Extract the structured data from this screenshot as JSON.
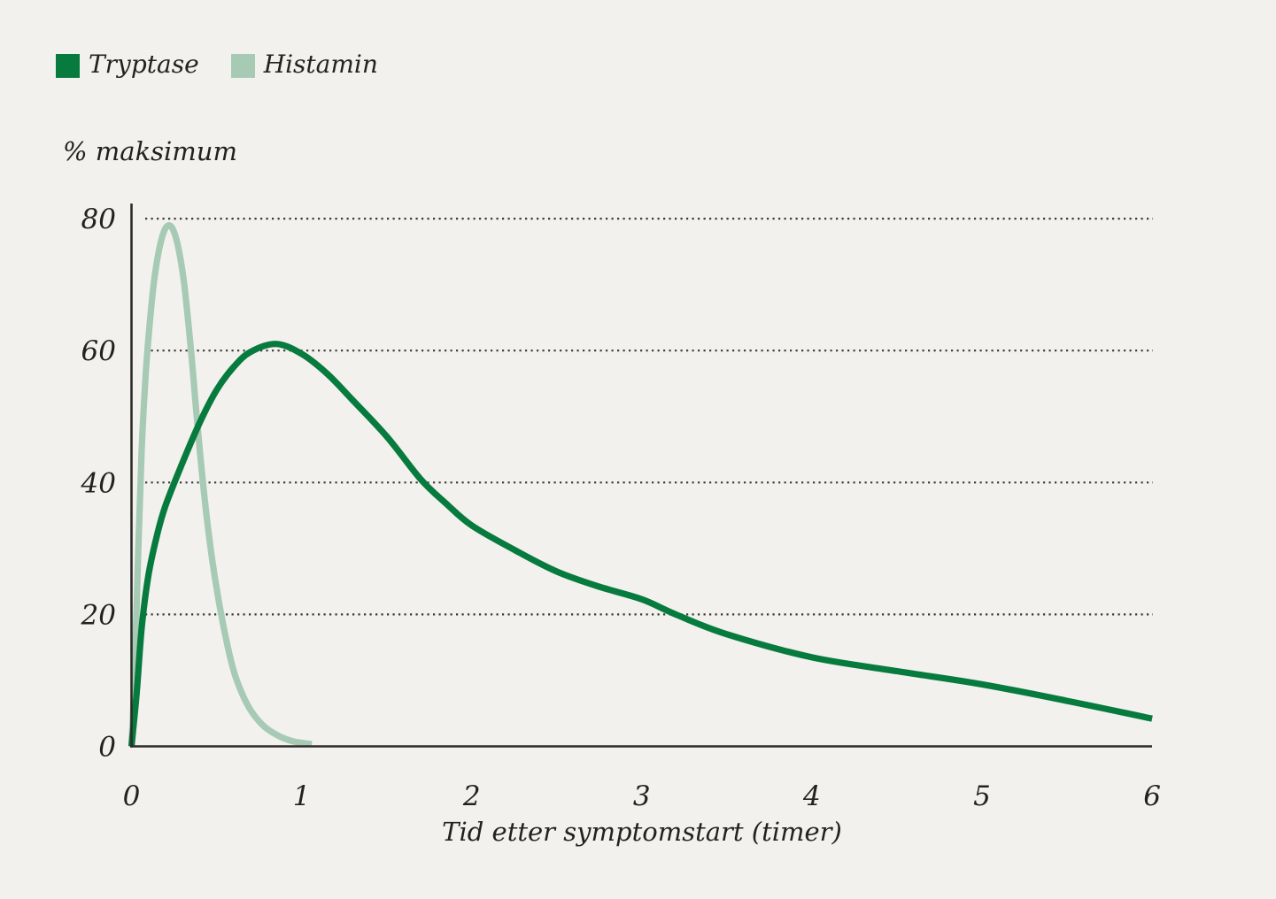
{
  "page": {
    "background": "#f2f1ee",
    "text_color": "#24221f"
  },
  "chart_data": {
    "type": "line",
    "title": "",
    "ylabel": "% maksimum",
    "xlabel": "Tid etter symptomstart (timer)",
    "xlim": [
      0,
      6
    ],
    "ylim": [
      0,
      80
    ],
    "x_ticks": [
      0,
      1,
      2,
      3,
      4,
      5,
      6
    ],
    "y_ticks": [
      0,
      20,
      40,
      60,
      80
    ],
    "grid": "horizontal dotted lines at y=20,40,60,80",
    "legend_position": "top-left",
    "axis_color": "#2e2c29",
    "grid_color": "#3a3835",
    "series": [
      {
        "name": "Tryptase",
        "color": "#077a3e",
        "peak": {
          "x": 0.85,
          "y": 61
        },
        "points": [
          [
            0,
            0
          ],
          [
            0.03,
            8
          ],
          [
            0.06,
            18
          ],
          [
            0.1,
            26
          ],
          [
            0.15,
            32
          ],
          [
            0.2,
            36.5
          ],
          [
            0.3,
            43
          ],
          [
            0.4,
            49
          ],
          [
            0.5,
            54
          ],
          [
            0.6,
            57.5
          ],
          [
            0.7,
            59.8
          ],
          [
            0.85,
            61
          ],
          [
            1.0,
            59.5
          ],
          [
            1.15,
            56.5
          ],
          [
            1.3,
            52.5
          ],
          [
            1.5,
            47
          ],
          [
            1.7,
            40.5
          ],
          [
            1.85,
            36.8
          ],
          [
            2.0,
            33.5
          ],
          [
            2.25,
            29.8
          ],
          [
            2.5,
            26.5
          ],
          [
            2.75,
            24.2
          ],
          [
            3.0,
            22.3
          ],
          [
            3.2,
            20
          ],
          [
            3.5,
            17
          ],
          [
            4.0,
            13.5
          ],
          [
            4.5,
            11.4
          ],
          [
            5.0,
            9.4
          ],
          [
            5.5,
            6.9
          ],
          [
            6.0,
            4.2
          ]
        ]
      },
      {
        "name": "Histamin",
        "color": "#a6cab4",
        "peak": {
          "x": 0.22,
          "y": 79
        },
        "points": [
          [
            0,
            0
          ],
          [
            0.02,
            12
          ],
          [
            0.04,
            30
          ],
          [
            0.06,
            45
          ],
          [
            0.08,
            55
          ],
          [
            0.1,
            62
          ],
          [
            0.13,
            70
          ],
          [
            0.16,
            75
          ],
          [
            0.19,
            78
          ],
          [
            0.22,
            79
          ],
          [
            0.25,
            78
          ],
          [
            0.28,
            75
          ],
          [
            0.31,
            70
          ],
          [
            0.35,
            60
          ],
          [
            0.38,
            51
          ],
          [
            0.42,
            40
          ],
          [
            0.46,
            31
          ],
          [
            0.5,
            24
          ],
          [
            0.55,
            17
          ],
          [
            0.6,
            11.5
          ],
          [
            0.65,
            8
          ],
          [
            0.7,
            5.5
          ],
          [
            0.75,
            3.8
          ],
          [
            0.8,
            2.6
          ],
          [
            0.88,
            1.4
          ],
          [
            0.96,
            0.7
          ],
          [
            1.06,
            0.35
          ]
        ]
      }
    ]
  }
}
